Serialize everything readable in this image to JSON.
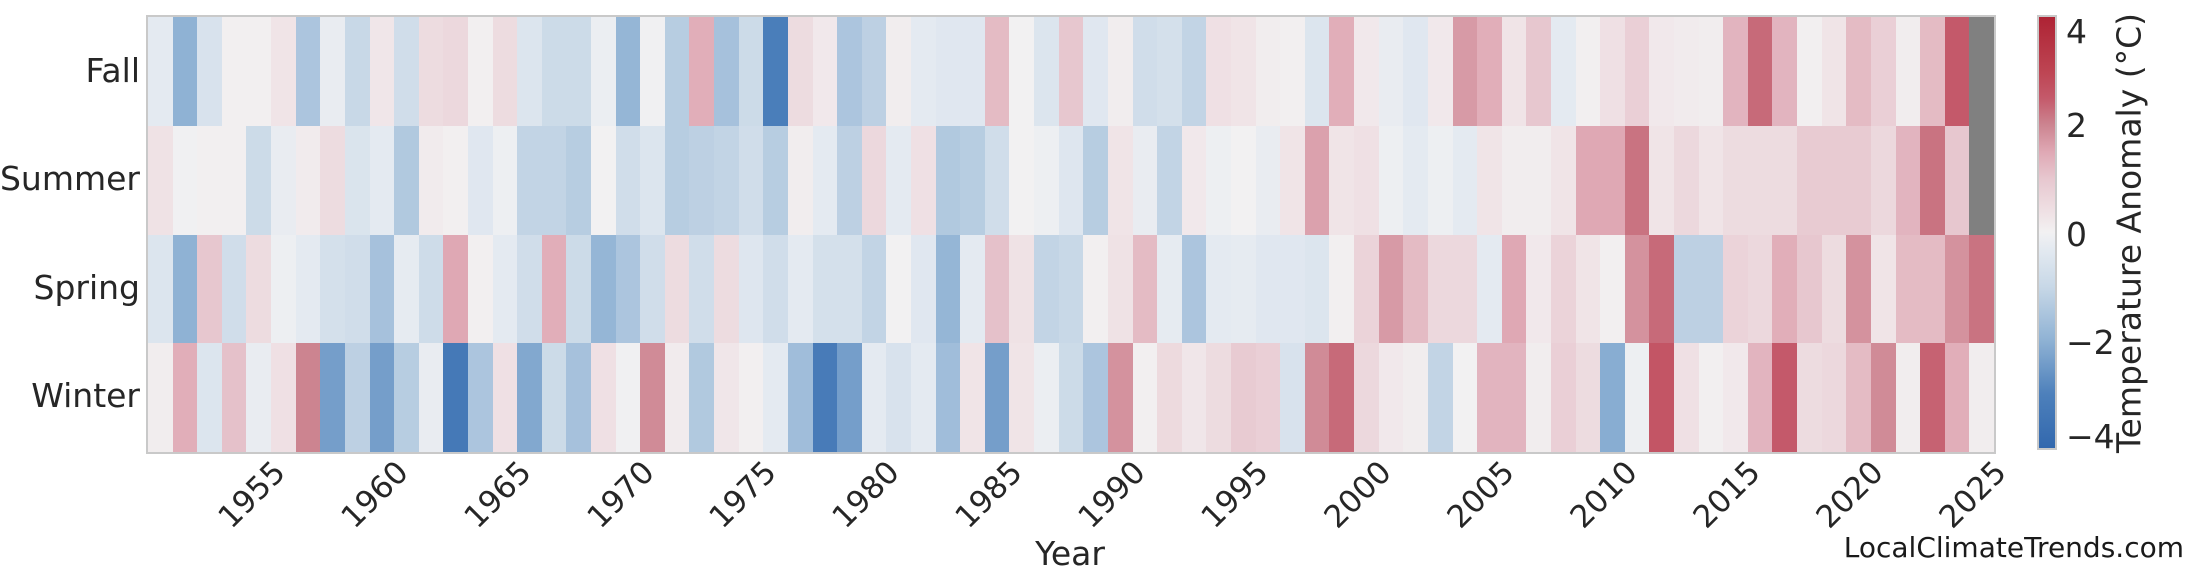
{
  "watermark": "LocalClimateTrends.com",
  "axes": {
    "xlabel": "Year",
    "x_tick_labels": [
      "1955",
      "1960",
      "1965",
      "1970",
      "1975",
      "1980",
      "1985",
      "1990",
      "1995",
      "2000",
      "2005",
      "2010",
      "2015",
      "2020",
      "2025"
    ]
  },
  "colorbar": {
    "label": "Temperature Anomaly (°C)",
    "tick_labels": [
      "4",
      "2",
      "0",
      "−2",
      "−4"
    ],
    "tick_values": [
      4,
      2,
      0,
      -2,
      -4
    ],
    "vmin": -4,
    "vmax": 4
  },
  "colors": {
    "missing_cell": "#808080",
    "frame": "#c9c9c9",
    "text": "#262626",
    "scale_stops": [
      {
        "v": -4.0,
        "c": "#3268ae"
      },
      {
        "v": -3.0,
        "c": "#4d80bb"
      },
      {
        "v": -2.0,
        "c": "#8fb2d4"
      },
      {
        "v": -1.0,
        "c": "#c8d8e7"
      },
      {
        "v": -0.3,
        "c": "#e4eaf1"
      },
      {
        "v": 0.0,
        "c": "#f2f1f2"
      },
      {
        "v": 0.3,
        "c": "#f0e4e7"
      },
      {
        "v": 1.0,
        "c": "#e7c7cf"
      },
      {
        "v": 1.5,
        "c": "#dfa8b4"
      },
      {
        "v": 2.0,
        "c": "#cc8490"
      },
      {
        "v": 2.5,
        "c": "#c4596a"
      },
      {
        "v": 3.0,
        "c": "#bd4452"
      },
      {
        "v": 4.0,
        "c": "#ae2334"
      }
    ]
  },
  "chart_data": {
    "type": "heatmap",
    "title": "",
    "xlabel": "Year",
    "value_label": "Temperature Anomaly (°C)",
    "value_range": [
      -4,
      4
    ],
    "year_start": 1951,
    "year_end": 2025,
    "x_ticks": [
      1955,
      1960,
      1965,
      1970,
      1975,
      1980,
      1985,
      1990,
      1995,
      2000,
      2005,
      2010,
      2015,
      2020,
      2025
    ],
    "legend_position": "right-colorbar",
    "grid": false,
    "note": "values are estimated temperature anomalies in deg C; null = missing data (gray cell)",
    "rows": [
      {
        "label": "Fall",
        "values": [
          -0.3,
          -2.0,
          -0.6,
          0.05,
          0.05,
          0.3,
          -1.5,
          -0.2,
          -1.0,
          0.25,
          -0.8,
          0.5,
          0.6,
          0.05,
          0.5,
          -0.5,
          -0.9,
          -0.9,
          -0.15,
          -1.9,
          -0.05,
          -1.3,
          1.4,
          -1.6,
          -0.9,
          -3.1,
          0.5,
          0.2,
          -1.5,
          -1.2,
          0.1,
          -0.3,
          -0.4,
          -0.4,
          1.2,
          0.0,
          -0.5,
          1.0,
          -0.4,
          0.1,
          -0.8,
          -0.7,
          -1.1,
          0.4,
          0.3,
          0.1,
          0.05,
          -0.5,
          1.4,
          0.2,
          -0.2,
          -0.4,
          0.2,
          1.7,
          1.4,
          0.3,
          1.0,
          -0.3,
          0.05,
          0.4,
          0.8,
          0.2,
          0.15,
          0.1,
          1.3,
          2.3,
          1.3,
          0.05,
          0.3,
          1.2,
          0.8,
          0.1,
          1.2,
          2.5,
          null
        ]
      },
      {
        "label": "Summer",
        "values": [
          0.35,
          -0.05,
          0.05,
          0.05,
          -0.9,
          -0.2,
          0.15,
          0.5,
          -0.55,
          -0.3,
          -1.4,
          0.15,
          0.05,
          -0.4,
          -0.1,
          -1.1,
          -1.1,
          -1.3,
          0.0,
          -0.8,
          -0.5,
          -1.3,
          -1.2,
          -1.1,
          -0.8,
          -1.3,
          0.1,
          -0.3,
          -1.2,
          0.6,
          -0.3,
          0.4,
          -1.4,
          -1.3,
          -0.8,
          0.0,
          -0.1,
          -0.45,
          -1.3,
          0.3,
          -0.2,
          -1.1,
          0.2,
          -0.1,
          0.0,
          -0.2,
          0.3,
          1.6,
          0.3,
          0.4,
          -0.1,
          -0.3,
          -0.1,
          -0.3,
          0.3,
          0.1,
          0.1,
          0.3,
          1.5,
          1.5,
          2.2,
          0.3,
          0.6,
          0.3,
          0.5,
          0.5,
          0.5,
          0.9,
          0.9,
          0.9,
          0.6,
          1.3,
          2.2,
          1.0,
          null
        ]
      },
      {
        "label": "Spring",
        "values": [
          -0.5,
          -2.0,
          1.0,
          -0.8,
          0.5,
          -0.1,
          -0.3,
          -0.7,
          -0.8,
          -1.6,
          -0.25,
          -0.85,
          1.5,
          0.05,
          -0.3,
          -0.8,
          1.4,
          -0.9,
          -1.9,
          -1.5,
          -0.8,
          0.5,
          -0.8,
          0.5,
          -0.45,
          -0.8,
          -0.3,
          -0.7,
          -0.7,
          -1.1,
          0.0,
          -0.4,
          -1.9,
          -0.3,
          1.1,
          0.35,
          -1.1,
          -1.0,
          0.05,
          0.35,
          1.2,
          -0.25,
          -1.5,
          -0.3,
          -0.25,
          -0.4,
          -0.4,
          -0.5,
          0.05,
          0.7,
          1.7,
          1.2,
          0.6,
          0.6,
          -0.3,
          1.5,
          0.2,
          0.7,
          0.3,
          0.05,
          1.8,
          2.3,
          -1.2,
          -1.2,
          0.7,
          0.6,
          1.4,
          1.0,
          0.5,
          1.8,
          0.3,
          1.2,
          1.2,
          1.8,
          2.2
        ]
      },
      {
        "label": "Winter",
        "values": [
          0.1,
          1.4,
          -0.5,
          1.1,
          -0.2,
          0.4,
          2.0,
          -2.4,
          -1.2,
          -2.4,
          -1.3,
          -0.2,
          -3.3,
          -1.5,
          0.4,
          -2.2,
          -0.9,
          -1.6,
          0.4,
          -0.05,
          1.9,
          0.15,
          -1.4,
          0.25,
          0.05,
          -0.3,
          -1.7,
          -3.2,
          -2.4,
          -0.3,
          -0.6,
          -0.3,
          -1.7,
          0.3,
          -2.4,
          0.3,
          -0.15,
          -0.9,
          -1.5,
          1.8,
          0.05,
          0.55,
          0.25,
          0.5,
          0.9,
          0.8,
          -0.6,
          1.9,
          2.3,
          0.6,
          0.2,
          0.1,
          -1.1,
          0.0,
          1.3,
          1.3,
          0.1,
          0.8,
          0.5,
          -2.1,
          -0.1,
          2.6,
          0.4,
          0.05,
          0.2,
          1.3,
          2.5,
          0.5,
          0.6,
          1.2,
          1.9,
          0.1,
          2.4,
          1.4,
          0.1
        ]
      }
    ]
  }
}
